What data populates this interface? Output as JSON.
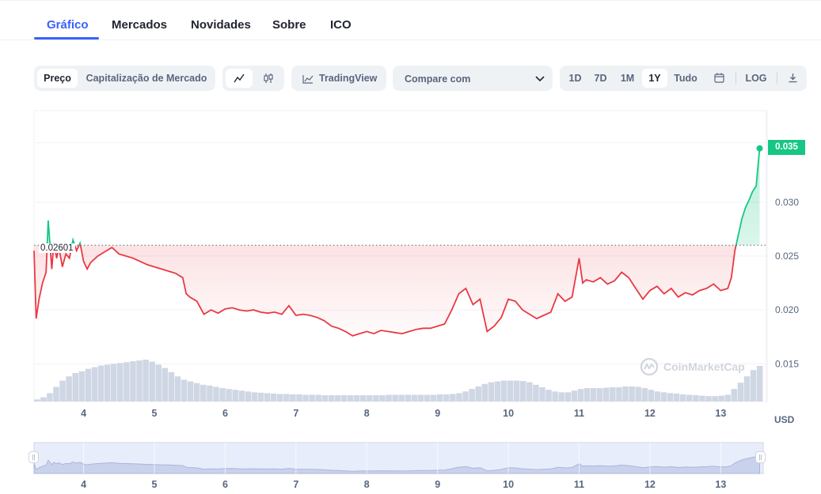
{
  "tabs": [
    {
      "label": "Gráfico",
      "active": true
    },
    {
      "label": "Mercados"
    },
    {
      "label": "Novidades"
    },
    {
      "label": "Sobre"
    },
    {
      "label": "ICO"
    }
  ],
  "toolbar": {
    "price_label": "Preço",
    "market_cap_label": "Capitalização de Mercado",
    "line_icon": "line-chart-icon",
    "candle_icon": "candlestick-icon",
    "tradingview_label": "TradingView",
    "compare_placeholder": "Compare com",
    "ranges": [
      "1D",
      "7D",
      "1M",
      "1Y",
      "Tudo"
    ],
    "active_range": "1Y",
    "calendar_icon": "calendar-icon",
    "log_label": "LOG",
    "download_icon": "download-icon"
  },
  "watermark": "CoinMarketCap",
  "chart_data": {
    "type": "line",
    "currency_label": "USD",
    "reference_value": 0.02601,
    "reference_label": "0.02601",
    "current_value": 0.035,
    "current_label": "0.035",
    "ylim": [
      0.0115,
      0.0385
    ],
    "xlim": [
      3.3,
      13.6
    ],
    "y_ticks": [
      0.015,
      0.02,
      0.025,
      0.03
    ],
    "y_tick_labels": [
      "0.015",
      "0.020",
      "0.025",
      "0.030"
    ],
    "x_ticks": [
      4,
      5,
      6,
      7,
      8,
      9,
      10,
      11,
      12,
      13
    ],
    "x_tick_labels": [
      "4",
      "5",
      "6",
      "7",
      "8",
      "9",
      "10",
      "11",
      "12",
      "13"
    ],
    "colors": {
      "up": "#16c784",
      "down": "#ea3943",
      "volume": "#cfd6e4",
      "grid": "#eff2f5"
    },
    "series": [
      {
        "x": [
          3.3,
          3.33,
          3.37,
          3.42,
          3.47,
          3.5,
          3.55,
          3.58,
          3.62,
          3.65,
          3.7,
          3.75,
          3.8,
          3.85,
          3.9,
          3.95,
          4.0,
          4.05,
          4.1,
          4.2,
          4.3,
          4.4,
          4.5,
          4.6,
          4.7,
          4.8,
          4.9,
          5.0,
          5.1,
          5.2,
          5.3,
          5.4,
          5.45,
          5.5,
          5.6,
          5.7,
          5.8,
          5.9,
          6.0,
          6.1,
          6.2,
          6.3,
          6.4,
          6.5,
          6.6,
          6.7,
          6.8,
          6.9,
          7.0,
          7.1,
          7.2,
          7.3,
          7.4,
          7.5,
          7.6,
          7.7,
          7.8,
          7.9,
          8.0,
          8.1,
          8.2,
          8.3,
          8.4,
          8.5,
          8.6,
          8.7,
          8.8,
          8.9,
          9.0,
          9.1,
          9.2,
          9.3,
          9.4,
          9.5,
          9.6,
          9.7,
          9.8,
          9.9,
          10.0,
          10.1,
          10.2,
          10.3,
          10.4,
          10.5,
          10.6,
          10.7,
          10.8,
          10.9,
          11.0,
          11.05,
          11.1,
          11.2,
          11.3,
          11.4,
          11.5,
          11.6,
          11.7,
          11.8,
          11.9,
          12.0,
          12.1,
          12.2,
          12.3,
          12.4,
          12.5,
          12.6,
          12.7,
          12.8,
          12.9,
          13.0,
          13.1,
          13.15,
          13.2,
          13.25,
          13.3,
          13.35,
          13.4,
          13.45,
          13.5,
          13.55
        ],
        "y": [
          0.0255,
          0.0192,
          0.021,
          0.0225,
          0.0235,
          0.0283,
          0.0238,
          0.0262,
          0.0248,
          0.0258,
          0.024,
          0.0252,
          0.0248,
          0.0265,
          0.0255,
          0.0262,
          0.0245,
          0.0238,
          0.0244,
          0.025,
          0.0254,
          0.0258,
          0.0252,
          0.025,
          0.0248,
          0.0245,
          0.0242,
          0.024,
          0.0238,
          0.0236,
          0.0234,
          0.023,
          0.0215,
          0.0212,
          0.0208,
          0.0196,
          0.02,
          0.0197,
          0.0201,
          0.0202,
          0.02,
          0.0199,
          0.02,
          0.0198,
          0.0197,
          0.0198,
          0.0196,
          0.0204,
          0.0195,
          0.0196,
          0.0195,
          0.0193,
          0.019,
          0.0185,
          0.0183,
          0.018,
          0.0176,
          0.0178,
          0.018,
          0.0178,
          0.0181,
          0.018,
          0.0179,
          0.0178,
          0.018,
          0.0182,
          0.0183,
          0.0183,
          0.0185,
          0.0187,
          0.02,
          0.0215,
          0.022,
          0.0205,
          0.021,
          0.018,
          0.0185,
          0.0193,
          0.021,
          0.0208,
          0.02,
          0.0196,
          0.0192,
          0.0195,
          0.0198,
          0.0215,
          0.0208,
          0.0212,
          0.0248,
          0.0225,
          0.0228,
          0.0226,
          0.023,
          0.0224,
          0.0227,
          0.0235,
          0.023,
          0.022,
          0.021,
          0.0218,
          0.0222,
          0.0215,
          0.022,
          0.0212,
          0.0216,
          0.0214,
          0.0218,
          0.022,
          0.0224,
          0.0218,
          0.022,
          0.023,
          0.0255,
          0.027,
          0.0285,
          0.0295,
          0.0302,
          0.031,
          0.0315,
          0.035
        ]
      }
    ],
    "volume": [
      0.05,
      0.1,
      0.2,
      0.35,
      0.5,
      0.6,
      0.68,
      0.72,
      0.78,
      0.82,
      0.86,
      0.88,
      0.9,
      0.92,
      0.94,
      0.96,
      0.98,
      1.0,
      0.95,
      0.88,
      0.8,
      0.7,
      0.6,
      0.52,
      0.48,
      0.44,
      0.4,
      0.38,
      0.35,
      0.32,
      0.3,
      0.28,
      0.26,
      0.24,
      0.22,
      0.21,
      0.2,
      0.19,
      0.18,
      0.18,
      0.17,
      0.17,
      0.16,
      0.16,
      0.16,
      0.15,
      0.15,
      0.15,
      0.15,
      0.15,
      0.15,
      0.15,
      0.15,
      0.15,
      0.15,
      0.16,
      0.16,
      0.16,
      0.16,
      0.16,
      0.16,
      0.16,
      0.16,
      0.17,
      0.17,
      0.18,
      0.2,
      0.24,
      0.3,
      0.36,
      0.42,
      0.46,
      0.48,
      0.5,
      0.5,
      0.5,
      0.49,
      0.46,
      0.4,
      0.34,
      0.28,
      0.24,
      0.22,
      0.22,
      0.26,
      0.3,
      0.32,
      0.32,
      0.32,
      0.33,
      0.34,
      0.34,
      0.36,
      0.36,
      0.35,
      0.32,
      0.28,
      0.24,
      0.22,
      0.2,
      0.19,
      0.17,
      0.16,
      0.15,
      0.14,
      0.13,
      0.13,
      0.14,
      0.16,
      0.3,
      0.45,
      0.6,
      0.75,
      0.85
    ]
  }
}
